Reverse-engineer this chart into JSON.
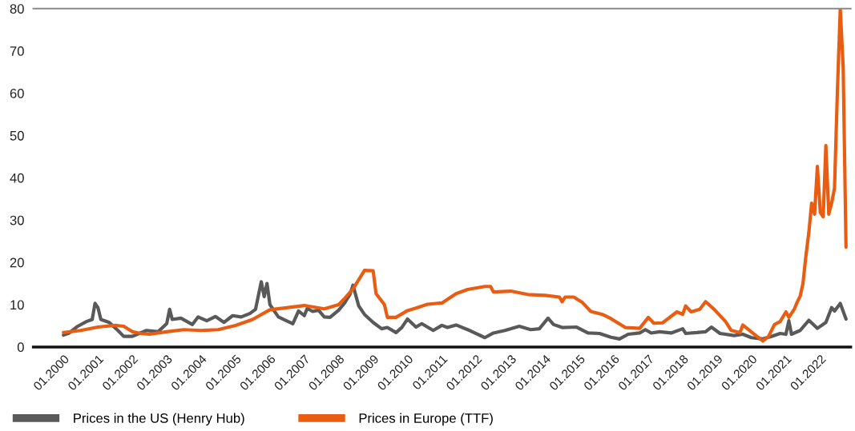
{
  "chart_data": {
    "type": "line",
    "series": [
      {
        "name": "Prices in the US (Henry Hub)",
        "color": "#595959",
        "x": [
          "2000-01",
          "2000-03",
          "2000-06",
          "2000-09",
          "2000-11",
          "2000-12",
          "2001-01",
          "2001-02",
          "2001-05",
          "2001-08",
          "2001-10",
          "2002-01",
          "2002-06",
          "2002-10",
          "2003-01",
          "2003-02",
          "2003-03",
          "2003-06",
          "2003-10",
          "2003-12",
          "2004-03",
          "2004-06",
          "2004-09",
          "2004-12",
          "2005-03",
          "2005-06",
          "2005-08",
          "2005-10",
          "2005-11",
          "2005-12",
          "2006-01",
          "2006-04",
          "2006-09",
          "2006-11",
          "2007-01",
          "2007-02",
          "2007-04",
          "2007-06",
          "2007-08",
          "2007-10",
          "2008-01",
          "2008-03",
          "2008-05",
          "2008-06",
          "2008-08",
          "2008-10",
          "2009-01",
          "2009-04",
          "2009-06",
          "2009-09",
          "2009-11",
          "2010-01",
          "2010-04",
          "2010-06",
          "2010-10",
          "2011-01",
          "2011-03",
          "2011-06",
          "2011-10",
          "2012-04",
          "2012-07",
          "2012-11",
          "2013-04",
          "2013-08",
          "2013-11",
          "2014-02",
          "2014-04",
          "2014-07",
          "2014-12",
          "2015-04",
          "2015-08",
          "2015-12",
          "2016-03",
          "2016-06",
          "2016-10",
          "2016-12",
          "2017-02",
          "2017-05",
          "2017-09",
          "2018-01",
          "2018-02",
          "2018-06",
          "2018-09",
          "2018-11",
          "2019-02",
          "2019-07",
          "2019-10",
          "2020-01",
          "2020-05",
          "2020-08",
          "2020-11",
          "2021-01",
          "2021-02",
          "2021-03",
          "2021-06",
          "2021-09",
          "2021-12",
          "2022-03",
          "2022-05",
          "2022-06",
          "2022-08",
          "2022-10"
        ],
        "values": [
          2.8,
          3.3,
          4.9,
          6.0,
          6.5,
          10.3,
          9.3,
          6.5,
          5.8,
          3.9,
          2.5,
          2.5,
          3.9,
          3.6,
          5.5,
          8.9,
          6.5,
          6.8,
          5.3,
          7.1,
          6.2,
          7.2,
          5.8,
          7.4,
          7.1,
          7.9,
          8.9,
          15.4,
          11.9,
          15.0,
          10.0,
          7.1,
          5.5,
          8.5,
          7.4,
          9.1,
          8.4,
          8.7,
          7.1,
          7.0,
          8.7,
          10.3,
          12.5,
          14.6,
          9.7,
          7.7,
          5.8,
          4.3,
          4.6,
          3.4,
          4.6,
          6.6,
          4.7,
          5.5,
          3.9,
          5.1,
          4.6,
          5.2,
          4.1,
          2.2,
          3.3,
          3.9,
          4.9,
          4.1,
          4.3,
          6.8,
          5.3,
          4.6,
          4.7,
          3.3,
          3.2,
          2.3,
          1.9,
          3.0,
          3.3,
          4.1,
          3.3,
          3.6,
          3.3,
          4.3,
          3.2,
          3.4,
          3.6,
          4.7,
          3.2,
          2.7,
          3.0,
          2.2,
          1.9,
          2.5,
          3.2,
          3.0,
          6.2,
          3.0,
          3.9,
          6.3,
          4.4,
          5.8,
          9.3,
          8.5,
          10.3,
          6.6
        ]
      },
      {
        "name": "Prices in Europe (TTF)",
        "color": "#e85d12",
        "x": [
          "2000-01",
          "2000-07",
          "2001-01",
          "2001-07",
          "2001-10",
          "2002-01",
          "2002-04",
          "2002-07",
          "2003-01",
          "2003-07",
          "2004-01",
          "2004-07",
          "2005-01",
          "2005-07",
          "2006-01",
          "2007-01",
          "2007-08",
          "2008-01",
          "2008-03",
          "2008-06",
          "2008-08",
          "2008-10",
          "2009-01",
          "2009-02",
          "2009-05",
          "2009-06",
          "2009-09",
          "2010-01",
          "2010-04",
          "2010-08",
          "2011-01",
          "2011-06",
          "2011-10",
          "2012-04",
          "2012-06",
          "2012-07",
          "2013-01",
          "2013-07",
          "2014-01",
          "2014-06",
          "2014-07",
          "2014-08",
          "2014-11",
          "2015-02",
          "2015-05",
          "2015-09",
          "2015-12",
          "2016-05",
          "2016-10",
          "2017-01",
          "2017-03",
          "2017-06",
          "2017-11",
          "2018-01",
          "2018-02",
          "2018-04",
          "2018-07",
          "2018-09",
          "2018-12",
          "2019-04",
          "2019-06",
          "2019-09",
          "2019-10",
          "2020-02",
          "2020-05",
          "2020-07",
          "2020-09",
          "2020-11",
          "2021-01",
          "2021-02",
          "2021-04",
          "2021-05",
          "2021-06",
          "2021-07",
          "2021-08",
          "2021-09",
          "2021-10",
          "2021-11",
          "2021-12",
          "2022-01",
          "2022-02",
          "2022-03",
          "2022-04",
          "2022-05",
          "2022-06",
          "2022-07",
          "2022-08",
          "2022-09",
          "2022-10"
        ],
        "values": [
          3.4,
          3.9,
          4.7,
          5.1,
          4.9,
          3.6,
          3.2,
          3.0,
          3.6,
          4.1,
          3.9,
          4.1,
          5.1,
          6.5,
          8.8,
          9.8,
          9.0,
          10.0,
          11.4,
          13.7,
          15.9,
          18.1,
          18.0,
          12.6,
          10.0,
          7.0,
          7.0,
          8.6,
          9.2,
          10.1,
          10.4,
          12.6,
          13.6,
          14.3,
          14.3,
          13.0,
          13.2,
          12.4,
          12.2,
          11.8,
          10.7,
          11.8,
          11.8,
          10.5,
          8.4,
          7.7,
          6.7,
          4.6,
          4.4,
          7.0,
          5.6,
          5.7,
          8.3,
          7.7,
          9.7,
          8.3,
          8.9,
          10.7,
          8.9,
          6.0,
          3.9,
          3.4,
          5.2,
          3.0,
          1.4,
          2.5,
          5.3,
          6.0,
          8.3,
          7.0,
          9.0,
          10.6,
          12.0,
          15.0,
          21.5,
          27,
          34,
          31.4,
          42.7,
          31.8,
          30.8,
          47.6,
          31.4,
          34,
          37.6,
          60,
          80,
          66,
          23.6
        ]
      }
    ],
    "xlim": [
      "1999-02-15",
      "2022-11-20"
    ],
    "xticks": [
      {
        "value": "2000-01",
        "label": "01.2000"
      },
      {
        "value": "2001-01",
        "label": "01.2001"
      },
      {
        "value": "2002-01",
        "label": "01.2002"
      },
      {
        "value": "2003-01",
        "label": "01.2003"
      },
      {
        "value": "2004-01",
        "label": "01.2004"
      },
      {
        "value": "2005-01",
        "label": "01.2005"
      },
      {
        "value": "2006-01",
        "label": "01.2006"
      },
      {
        "value": "2007-01",
        "label": "01.2007"
      },
      {
        "value": "2008-01",
        "label": "01.2008"
      },
      {
        "value": "2009-01",
        "label": "01.2009"
      },
      {
        "value": "2010-01",
        "label": "01.2010"
      },
      {
        "value": "2011-01",
        "label": "01.2011"
      },
      {
        "value": "2012-01",
        "label": "01.2012"
      },
      {
        "value": "2013-01",
        "label": "01.2013"
      },
      {
        "value": "2014-01",
        "label": "01.2014"
      },
      {
        "value": "2015-01",
        "label": "01.2015"
      },
      {
        "value": "2016-01",
        "label": "01.2016"
      },
      {
        "value": "2017-01",
        "label": "01.2017"
      },
      {
        "value": "2018-01",
        "label": "01.2018"
      },
      {
        "value": "2019-01",
        "label": "01.2019"
      },
      {
        "value": "2020-01",
        "label": "01.2020"
      },
      {
        "value": "2021-01",
        "label": "01.2021"
      },
      {
        "value": "2022-01",
        "label": "01.2022"
      }
    ],
    "ylim": [
      0,
      80
    ],
    "yticks": [
      0,
      10,
      20,
      30,
      40,
      50,
      60,
      70,
      80
    ],
    "legend": "bottom left",
    "marker": "none",
    "line_style": "solid"
  }
}
